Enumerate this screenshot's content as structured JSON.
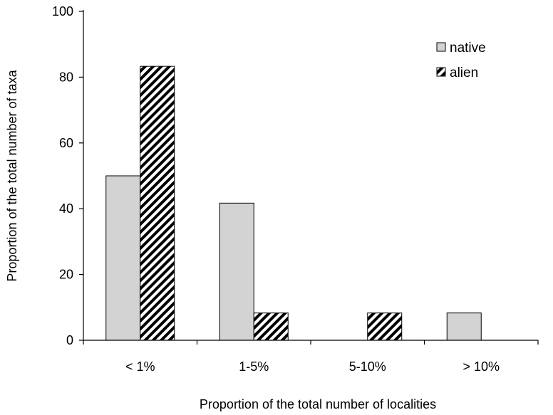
{
  "chart_data": {
    "type": "bar",
    "title": "",
    "xlabel": "Proportion of the total number of localities",
    "ylabel": "Proportion of the total number of taxa",
    "categories": [
      "< 1%",
      "1-5%",
      "5-10%",
      "> 10%"
    ],
    "series": [
      {
        "name": "native",
        "values": [
          50,
          41.7,
          0,
          8.3
        ],
        "color": "#d3d3d3",
        "pattern": "solid"
      },
      {
        "name": "alien",
        "values": [
          83.3,
          8.3,
          8.3,
          0
        ],
        "color": "#000000",
        "pattern": "diagonal-hatch"
      }
    ],
    "ylim": [
      0,
      100
    ],
    "yticks": [
      0,
      20,
      40,
      60,
      80,
      100
    ],
    "grid": false,
    "legend_position": "top-right"
  }
}
